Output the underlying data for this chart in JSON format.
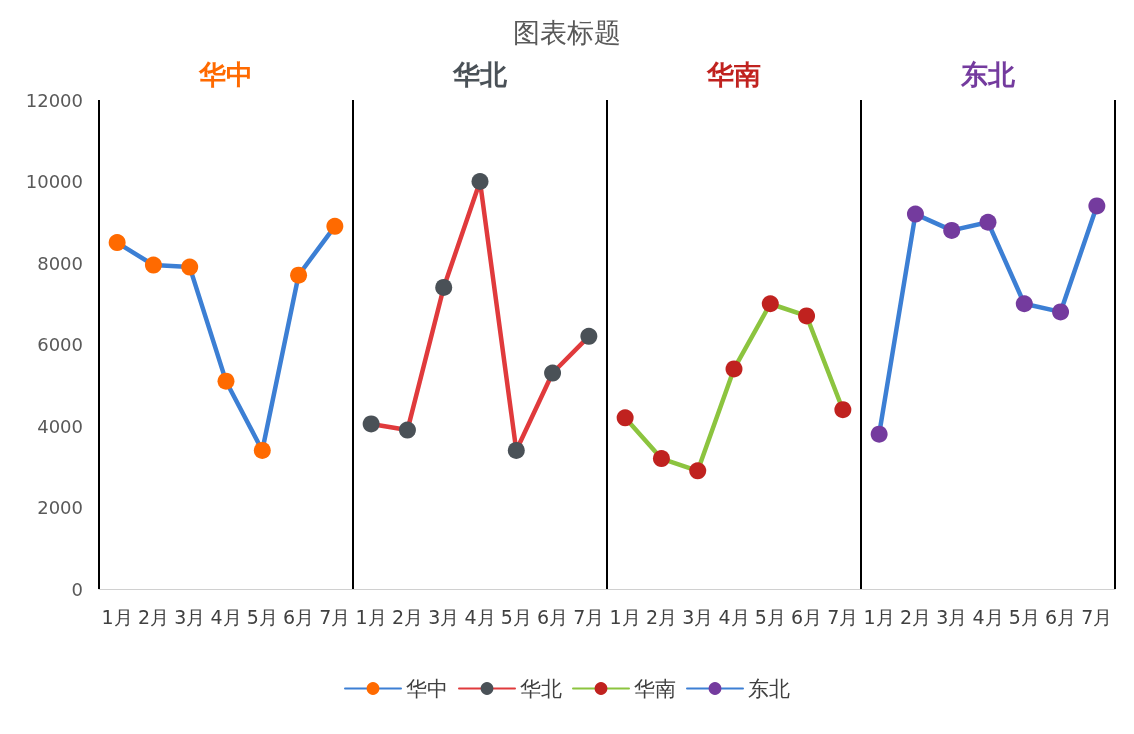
{
  "chart_data": {
    "type": "line",
    "title": "图表标题",
    "categories": [
      "1月",
      "2月",
      "3月",
      "4月",
      "5月",
      "6月",
      "7月",
      "1月",
      "2月",
      "3月",
      "4月",
      "5月",
      "6月",
      "7月",
      "1月",
      "2月",
      "3月",
      "4月",
      "5月",
      "6月",
      "7月",
      "1月",
      "2月",
      "3月",
      "4月",
      "5月",
      "6月",
      "7月"
    ],
    "series": [
      {
        "name": "华中",
        "color": "#3c7fd4",
        "colors": [
          "#ff6a00",
          "#ff6a00",
          "#ff6a00",
          "#ff6a00",
          "#ff6a00",
          "#ff6a00",
          "#ff6a00",
          null,
          null,
          null,
          null,
          null,
          null,
          null,
          null,
          null,
          null,
          null,
          null,
          null,
          null,
          null,
          null,
          null,
          null,
          null,
          null,
          null
        ],
        "values": [
          8500,
          7950,
          7900,
          5100,
          3400,
          7700,
          8900,
          null,
          null,
          null,
          null,
          null,
          null,
          null,
          null,
          null,
          null,
          null,
          null,
          null,
          null,
          null,
          null,
          null,
          null,
          null,
          null,
          null
        ]
      },
      {
        "name": "华北",
        "color": "#e03a3c",
        "colors": [
          null,
          null,
          null,
          null,
          null,
          null,
          null,
          "#4a5157",
          "#4a5157",
          "#4a5157",
          "#4a5157",
          "#4a5157",
          "#4a5157",
          "#4a5157",
          null,
          null,
          null,
          null,
          null,
          null,
          null,
          null,
          null,
          null,
          null,
          null,
          null,
          null
        ],
        "values": [
          null,
          null,
          null,
          null,
          null,
          null,
          null,
          4050,
          3900,
          7400,
          10000,
          3400,
          5300,
          6200,
          null,
          null,
          null,
          null,
          null,
          null,
          null,
          null,
          null,
          null,
          null,
          null,
          null,
          null
        ]
      },
      {
        "name": "华南",
        "color": "#8cc43f",
        "colors": [
          null,
          null,
          null,
          null,
          null,
          null,
          null,
          null,
          null,
          null,
          null,
          null,
          null,
          null,
          "#c0221f",
          "#c0221f",
          "#c0221f",
          "#c0221f",
          "#c0221f",
          "#c0221f",
          "#c0221f",
          null,
          null,
          null,
          null,
          null,
          null,
          null
        ],
        "values": [
          null,
          null,
          null,
          null,
          null,
          null,
          null,
          null,
          null,
          null,
          null,
          null,
          null,
          null,
          4200,
          3200,
          2900,
          5400,
          7000,
          6700,
          4400,
          null,
          null,
          null,
          null,
          null,
          null,
          null
        ]
      },
      {
        "name": "东北",
        "color": "#3c7fd4",
        "colors": [
          null,
          null,
          null,
          null,
          null,
          null,
          null,
          null,
          null,
          null,
          null,
          null,
          null,
          null,
          null,
          null,
          null,
          null,
          null,
          null,
          null,
          "#743b9e",
          "#743b9e",
          "#743b9e",
          "#743b9e",
          "#743b9e",
          "#743b9e",
          "#743b9e"
        ],
        "values": [
          null,
          null,
          null,
          null,
          null,
          null,
          null,
          null,
          null,
          null,
          null,
          null,
          null,
          null,
          null,
          null,
          null,
          null,
          null,
          null,
          null,
          3800,
          9200,
          8800,
          9000,
          7000,
          6800,
          9400
        ]
      }
    ],
    "annotations": [
      "华中",
      "华北",
      "华南",
      "东北"
    ],
    "ylim": [
      0,
      12000
    ],
    "yticks": [
      0,
      2000,
      4000,
      6000,
      8000,
      10000,
      12000
    ],
    "grid": "x",
    "legend": "bottom",
    "marker": "circle",
    "line_style": "solid"
  }
}
